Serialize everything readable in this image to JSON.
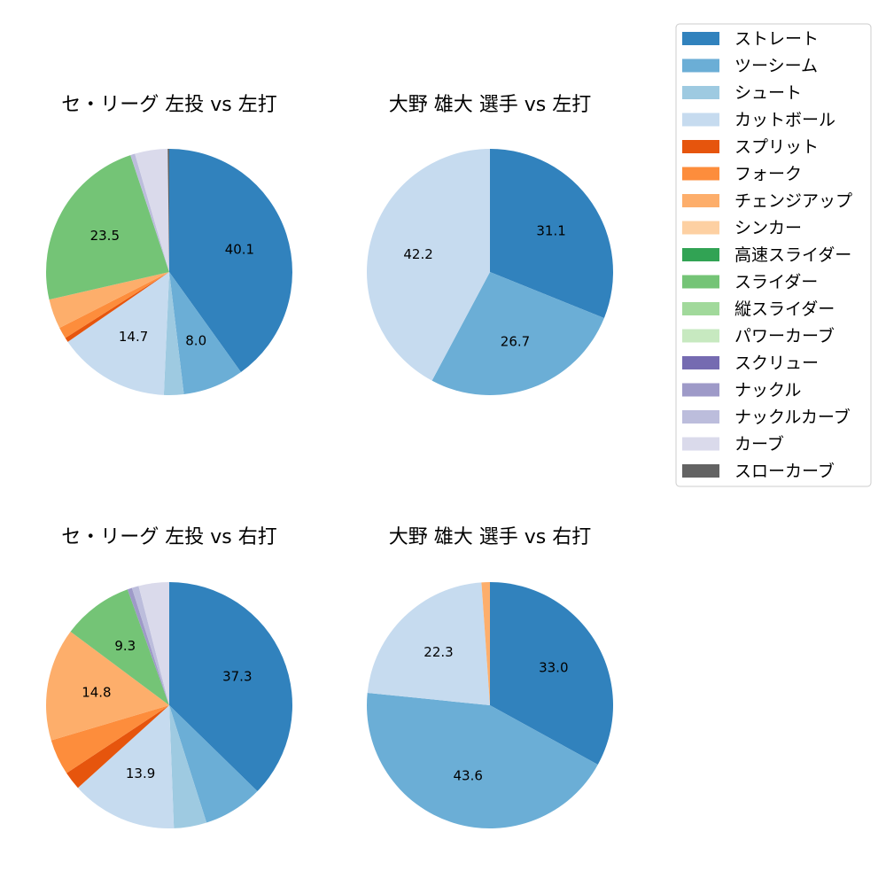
{
  "legend": {
    "items": [
      {
        "label": "ストレート",
        "color": "#3182bd"
      },
      {
        "label": "ツーシーム",
        "color": "#6baed6"
      },
      {
        "label": "シュート",
        "color": "#9ecae1"
      },
      {
        "label": "カットボール",
        "color": "#c6dbef"
      },
      {
        "label": "スプリット",
        "color": "#e6550d"
      },
      {
        "label": "フォーク",
        "color": "#fd8d3c"
      },
      {
        "label": "チェンジアップ",
        "color": "#fdae6b"
      },
      {
        "label": "シンカー",
        "color": "#fdd0a2"
      },
      {
        "label": "高速スライダー",
        "color": "#31a354"
      },
      {
        "label": "スライダー",
        "color": "#74c476"
      },
      {
        "label": "縦スライダー",
        "color": "#a1d99b"
      },
      {
        "label": "パワーカーブ",
        "color": "#c7e9c0"
      },
      {
        "label": "スクリュー",
        "color": "#756bb1"
      },
      {
        "label": "ナックル",
        "color": "#9e9ac8"
      },
      {
        "label": "ナックルカーブ",
        "color": "#bcbddc"
      },
      {
        "label": "カーブ",
        "color": "#dadaeb"
      },
      {
        "label": "スローカーブ",
        "color": "#636363"
      }
    ]
  },
  "chart_data": [
    {
      "type": "pie",
      "title": "セ・リーグ 左投 vs 左打",
      "slices": [
        {
          "label": "ストレート",
          "value": 40.1,
          "shown": "40.1"
        },
        {
          "label": "ツーシーム",
          "value": 8.0,
          "shown": "8.0"
        },
        {
          "label": "シュート",
          "value": 2.6,
          "shown": ""
        },
        {
          "label": "カットボール",
          "value": 14.7,
          "shown": "14.7"
        },
        {
          "label": "スプリット",
          "value": 0.6,
          "shown": ""
        },
        {
          "label": "フォーク",
          "value": 1.5,
          "shown": ""
        },
        {
          "label": "チェンジアップ",
          "value": 3.9,
          "shown": ""
        },
        {
          "label": "スライダー",
          "value": 23.5,
          "shown": "23.5"
        },
        {
          "label": "ナックルカーブ",
          "value": 0.6,
          "shown": ""
        },
        {
          "label": "カーブ",
          "value": 4.3,
          "shown": ""
        },
        {
          "label": "スローカーブ",
          "value": 0.2,
          "shown": ""
        }
      ]
    },
    {
      "type": "pie",
      "title": "大野 雄大 選手 vs 左打",
      "slices": [
        {
          "label": "ストレート",
          "value": 31.1,
          "shown": "31.1"
        },
        {
          "label": "ツーシーム",
          "value": 26.7,
          "shown": "26.7"
        },
        {
          "label": "カットボール",
          "value": 42.2,
          "shown": "42.2"
        }
      ]
    },
    {
      "type": "pie",
      "title": "セ・リーグ 左投 vs 右打",
      "slices": [
        {
          "label": "ストレート",
          "value": 37.3,
          "shown": "37.3"
        },
        {
          "label": "ツーシーム",
          "value": 7.8,
          "shown": ""
        },
        {
          "label": "シュート",
          "value": 4.3,
          "shown": ""
        },
        {
          "label": "カットボール",
          "value": 13.9,
          "shown": "13.9"
        },
        {
          "label": "スプリット",
          "value": 2.4,
          "shown": ""
        },
        {
          "label": "フォーク",
          "value": 4.7,
          "shown": ""
        },
        {
          "label": "チェンジアップ",
          "value": 14.8,
          "shown": "14.8"
        },
        {
          "label": "スライダー",
          "value": 9.3,
          "shown": "9.3"
        },
        {
          "label": "ナックル",
          "value": 0.6,
          "shown": ""
        },
        {
          "label": "ナックルカーブ",
          "value": 0.9,
          "shown": ""
        },
        {
          "label": "カーブ",
          "value": 4.0,
          "shown": ""
        }
      ]
    },
    {
      "type": "pie",
      "title": "大野 雄大 選手 vs 右打",
      "slices": [
        {
          "label": "ストレート",
          "value": 33.0,
          "shown": "33.0"
        },
        {
          "label": "ツーシーム",
          "value": 43.6,
          "shown": "43.6"
        },
        {
          "label": "カットボール",
          "value": 22.3,
          "shown": "22.3"
        },
        {
          "label": "チェンジアップ",
          "value": 1.1,
          "shown": ""
        }
      ]
    }
  ]
}
